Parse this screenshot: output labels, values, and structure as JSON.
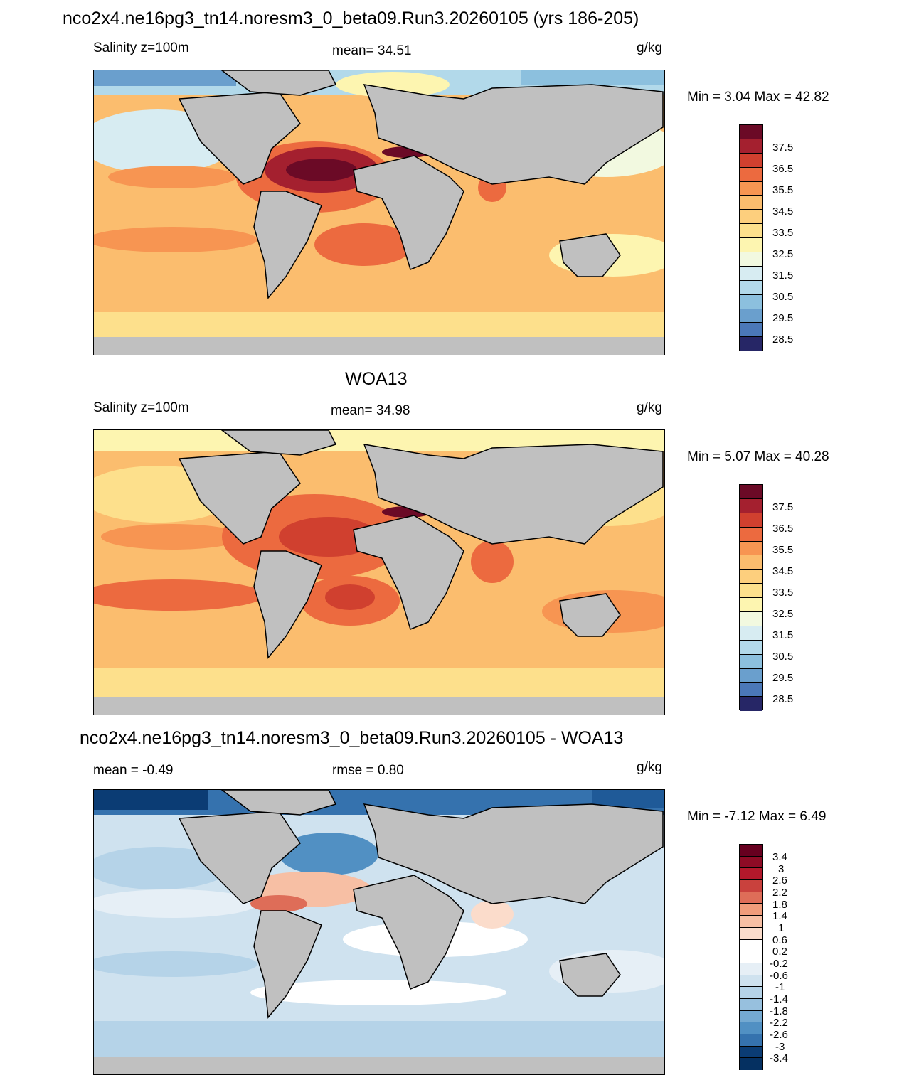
{
  "title": "nco2x4.ne16pg3_tn14.noresm3_0_beta09.Run3.20260105 (yrs 186-205)",
  "panels": [
    {
      "heading": "",
      "left_label": "Salinity z=100m",
      "center_label": "mean=  34.51",
      "units": "g/kg",
      "minmax": "Min =   3.04 Max =  42.82",
      "colorbar_labels": [
        "37.5",
        "36.5",
        "35.5",
        "34.5",
        "33.5",
        "32.5",
        "31.5",
        "30.5",
        "29.5",
        "28.5"
      ]
    },
    {
      "heading": "WOA13",
      "left_label": "Salinity z=100m",
      "center_label": "mean=  34.98",
      "units": "g/kg",
      "minmax": "Min =   5.07 Max =  40.28",
      "colorbar_labels": [
        "37.5",
        "36.5",
        "35.5",
        "34.5",
        "33.5",
        "32.5",
        "31.5",
        "30.5",
        "29.5",
        "28.5"
      ]
    },
    {
      "heading": "nco2x4.ne16pg3_tn14.noresm3_0_beta09.Run3.20260105 - WOA13",
      "left_label": "mean =  -0.49",
      "center_label": "rmse =   0.80",
      "units": "g/kg",
      "minmax": "Min =  -7.12 Max =   6.49",
      "colorbar_labels": [
        "3.4",
        "3",
        "2.6",
        "2.2",
        "1.8",
        "1.4",
        "1",
        "0.6",
        "0.2",
        "-0.2",
        "-0.6",
        "-1",
        "-1.4",
        "-1.8",
        "-2.2",
        "-2.6",
        "-3",
        "-3.4"
      ]
    }
  ],
  "colors": {
    "land": "#c0c0c0",
    "salinity_scale": [
      "#6b0a26",
      "#a4202f",
      "#d0402f",
      "#ec6a3f",
      "#f79552",
      "#fbbd6e",
      "#fde08c",
      "#fdf5b0",
      "#f2f9e0",
      "#d7ecf2",
      "#b2d9ea",
      "#8cc0de",
      "#6a9fcd",
      "#4b78b8",
      "#33499b",
      "#262666"
    ],
    "diff_scale": [
      "#67001f",
      "#8e0b25",
      "#b2182b",
      "#c9413d",
      "#de6d58",
      "#f09c7b",
      "#f7bfa4",
      "#fbdccb",
      "#ffffff",
      "#e6eff6",
      "#cfe2ef",
      "#b5d3e8",
      "#97c0de",
      "#74a9d1",
      "#5190c3",
      "#3572ae",
      "#1f5a98",
      "#0b3c74",
      "#053061"
    ]
  },
  "legend_placement": "right"
}
